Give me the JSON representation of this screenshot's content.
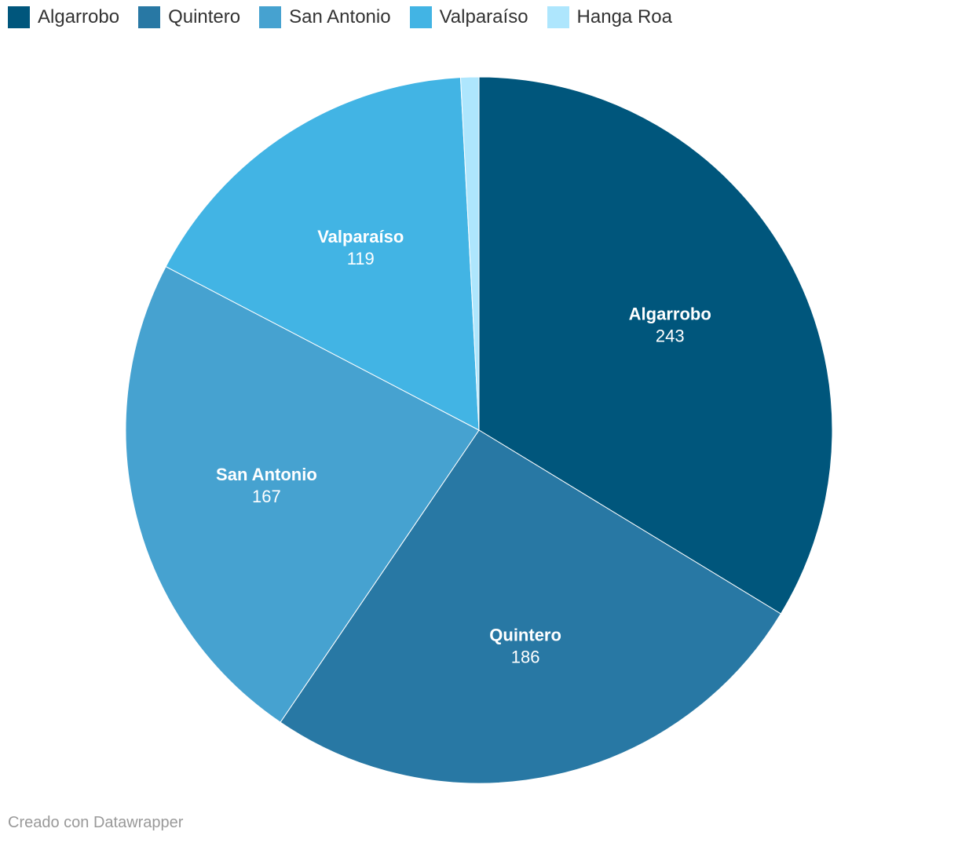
{
  "footer": {
    "credit": "Creado con Datawrapper"
  },
  "colors": {
    "Algarrobo": "#00567c",
    "Quintero": "#2878a4",
    "San Antonio": "#46a2d0",
    "Valparaíso": "#42b4e4",
    "Hanga Roa": "#aee6fd"
  },
  "chart_data": {
    "type": "pie",
    "title": "",
    "legend_position": "top",
    "slices": [
      {
        "label": "Algarrobo",
        "value": 243,
        "color": "#00567c",
        "show_label": true
      },
      {
        "label": "Quintero",
        "value": 186,
        "color": "#2878a4",
        "show_label": true
      },
      {
        "label": "San Antonio",
        "value": 167,
        "color": "#46a2d0",
        "show_label": true
      },
      {
        "label": "Valparaíso",
        "value": 119,
        "color": "#42b4e4",
        "show_label": true
      },
      {
        "label": "Hanga Roa",
        "value": 6,
        "color": "#aee6fd",
        "show_label": false
      }
    ]
  }
}
